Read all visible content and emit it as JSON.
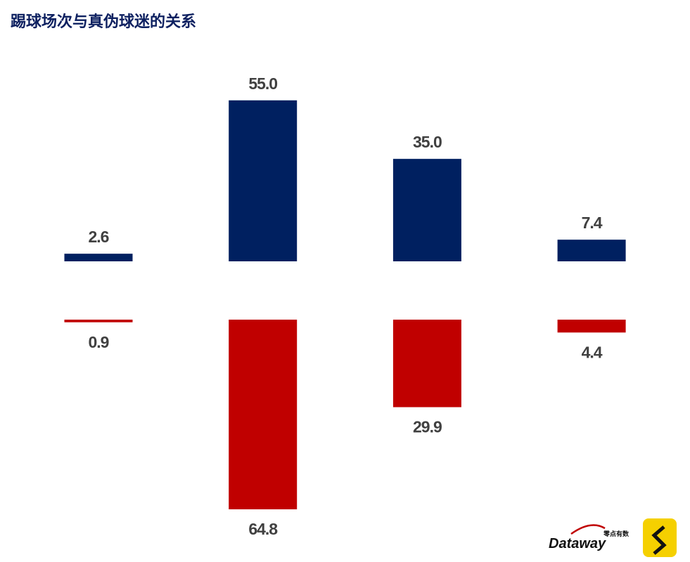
{
  "chart_data": {
    "type": "diverging-bar",
    "title": "踢球场次与真伪球迷的关系",
    "categories": [
      null,
      null,
      null,
      null
    ],
    "series": [
      {
        "color": "#002060",
        "direction": "up",
        "values": [
          2.6,
          55,
          35,
          7.4
        ],
        "value_labels": [
          "2.6",
          "55.0",
          "35.0",
          "7.4"
        ]
      },
      {
        "color": "#c00000",
        "direction": "down",
        "values": [
          0.9,
          64.8,
          29.9,
          4.4
        ],
        "value_labels": [
          "0.9",
          "64.8",
          "29.9",
          "4.4"
        ]
      }
    ]
  },
  "branding": {
    "name": "Dataway",
    "tagline": "零点有数"
  }
}
